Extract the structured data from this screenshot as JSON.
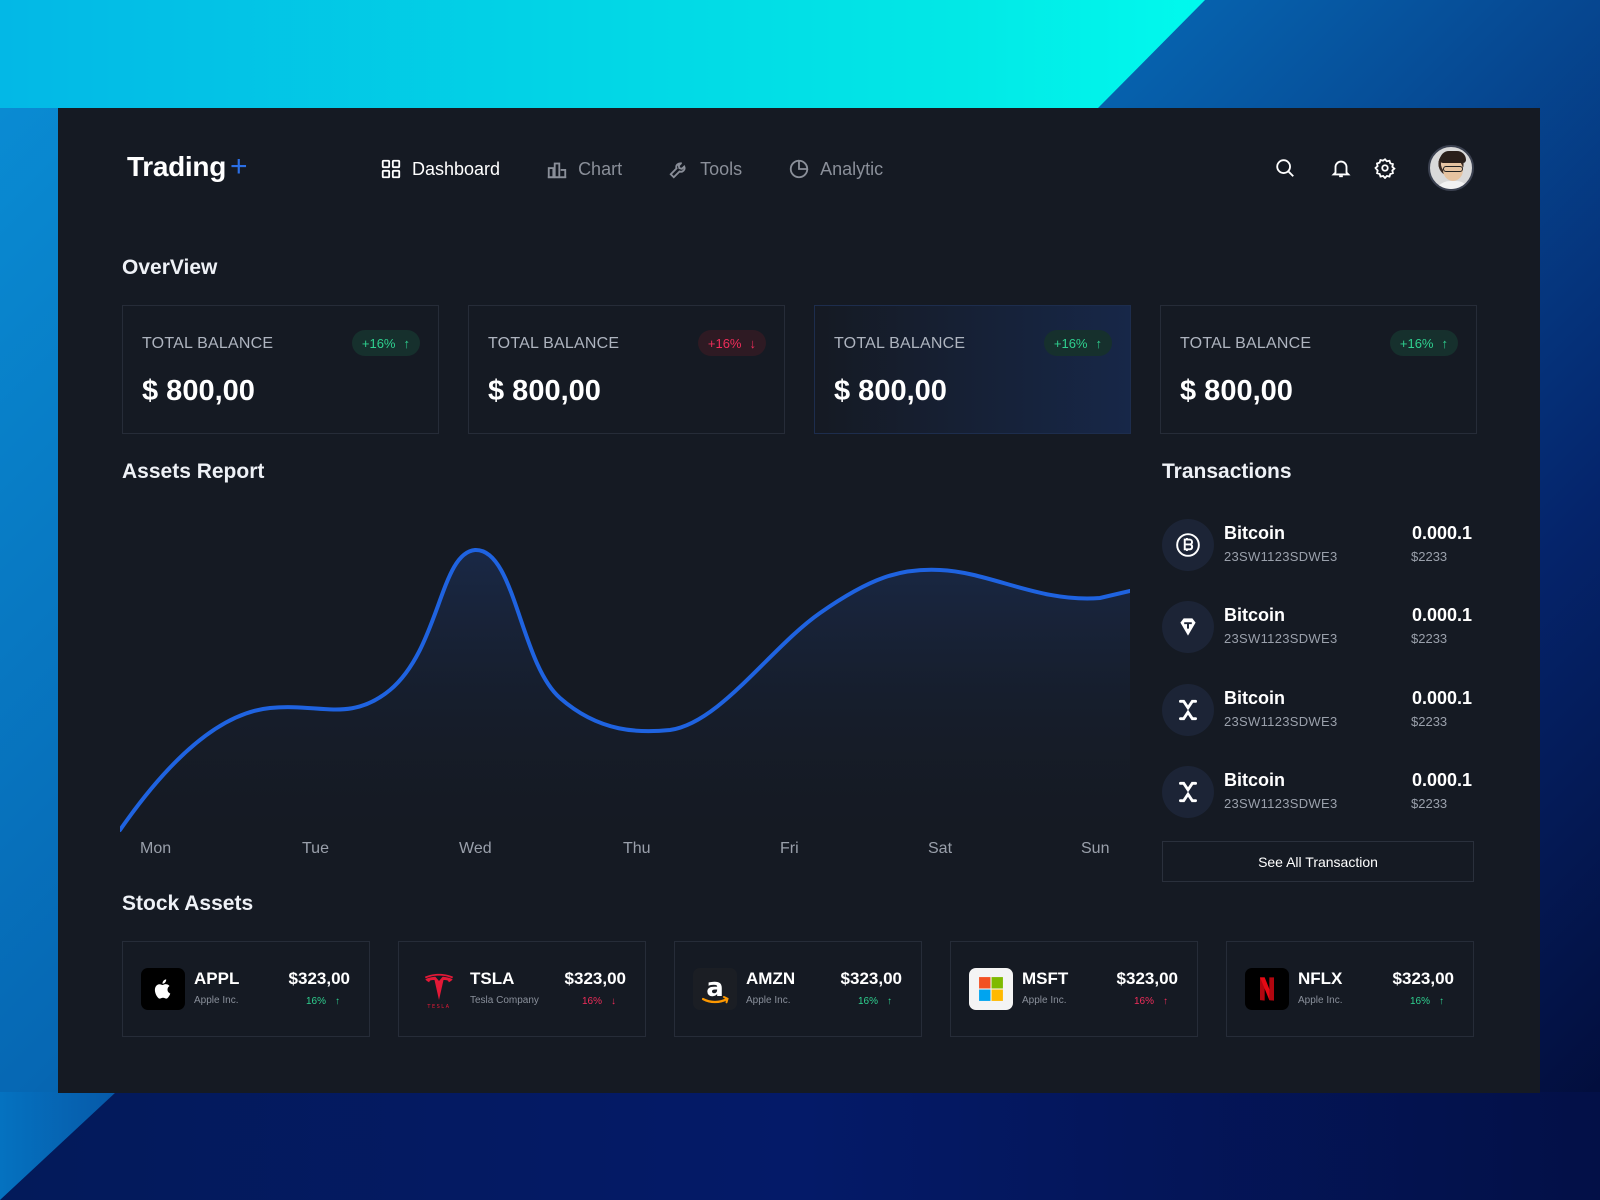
{
  "header": {
    "logo": "Trading",
    "logo_plus": "+",
    "nav": [
      {
        "label": "Dashboard",
        "icon": "grid-icon",
        "active": true
      },
      {
        "label": "Chart",
        "icon": "bar-chart-icon",
        "active": false
      },
      {
        "label": "Tools",
        "icon": "wrench-icon",
        "active": false
      },
      {
        "label": "Analytic",
        "icon": "pie-chart-icon",
        "active": false
      }
    ]
  },
  "overview": {
    "title": "OverView",
    "cards": [
      {
        "label": "TOTAL BALANCE",
        "value": "$ 800,00",
        "change": "+16%",
        "direction": "up"
      },
      {
        "label": "TOTAL BALANCE",
        "value": "$ 800,00",
        "change": "+16%",
        "direction": "down"
      },
      {
        "label": "TOTAL BALANCE",
        "value": "$ 800,00",
        "change": "+16%",
        "direction": "up"
      },
      {
        "label": "TOTAL BALANCE",
        "value": "$ 800,00",
        "change": "+16%",
        "direction": "up"
      }
    ]
  },
  "assets_report": {
    "title": "Assets Report",
    "days": [
      "Mon",
      "Tue",
      "Wed",
      "Thu",
      "Fri",
      "Sat",
      "Sun"
    ]
  },
  "transactions": {
    "title": "Transactions",
    "items": [
      {
        "name": "Bitcoin",
        "id": "23SW1123SDWE3",
        "amount": "0.000.1",
        "usd": "$2233",
        "icon": "bitcoin-icon"
      },
      {
        "name": "Bitcoin",
        "id": "23SW1123SDWE3",
        "amount": "0.000.1",
        "usd": "$2233",
        "icon": "tether-icon"
      },
      {
        "name": "Bitcoin",
        "id": "23SW1123SDWE3",
        "amount": "0.000.1",
        "usd": "$2233",
        "icon": "x-token-icon"
      },
      {
        "name": "Bitcoin",
        "id": "23SW1123SDWE3",
        "amount": "0.000.1",
        "usd": "$2233",
        "icon": "x-token-icon"
      }
    ],
    "see_all": "See All Transaction"
  },
  "stocks": {
    "title": "Stock Assets",
    "items": [
      {
        "symbol": "APPL",
        "company": "Apple Inc.",
        "price": "$323,00",
        "change": "16%",
        "direction": "up",
        "logo": "apple-logo-icon"
      },
      {
        "symbol": "TSLA",
        "company": "Tesla Company",
        "price": "$323,00",
        "change": "16%",
        "direction": "down",
        "logo": "tesla-logo-icon"
      },
      {
        "symbol": "AMZN",
        "company": "Apple Inc.",
        "price": "$323,00",
        "change": "16%",
        "direction": "up",
        "logo": "amazon-logo-icon"
      },
      {
        "symbol": "MSFT",
        "company": "Apple Inc.",
        "price": "$323,00",
        "change": "16%",
        "direction": "down-up",
        "logo": "microsoft-logo-icon"
      },
      {
        "symbol": "NFLX",
        "company": "Apple Inc.",
        "price": "$323,00",
        "change": "16%",
        "direction": "up",
        "logo": "netflix-logo-icon"
      }
    ]
  },
  "colors": {
    "accent": "#2b6fe6",
    "up": "#2fd08f",
    "down": "#ef2d5a",
    "panel": "#151a23"
  }
}
